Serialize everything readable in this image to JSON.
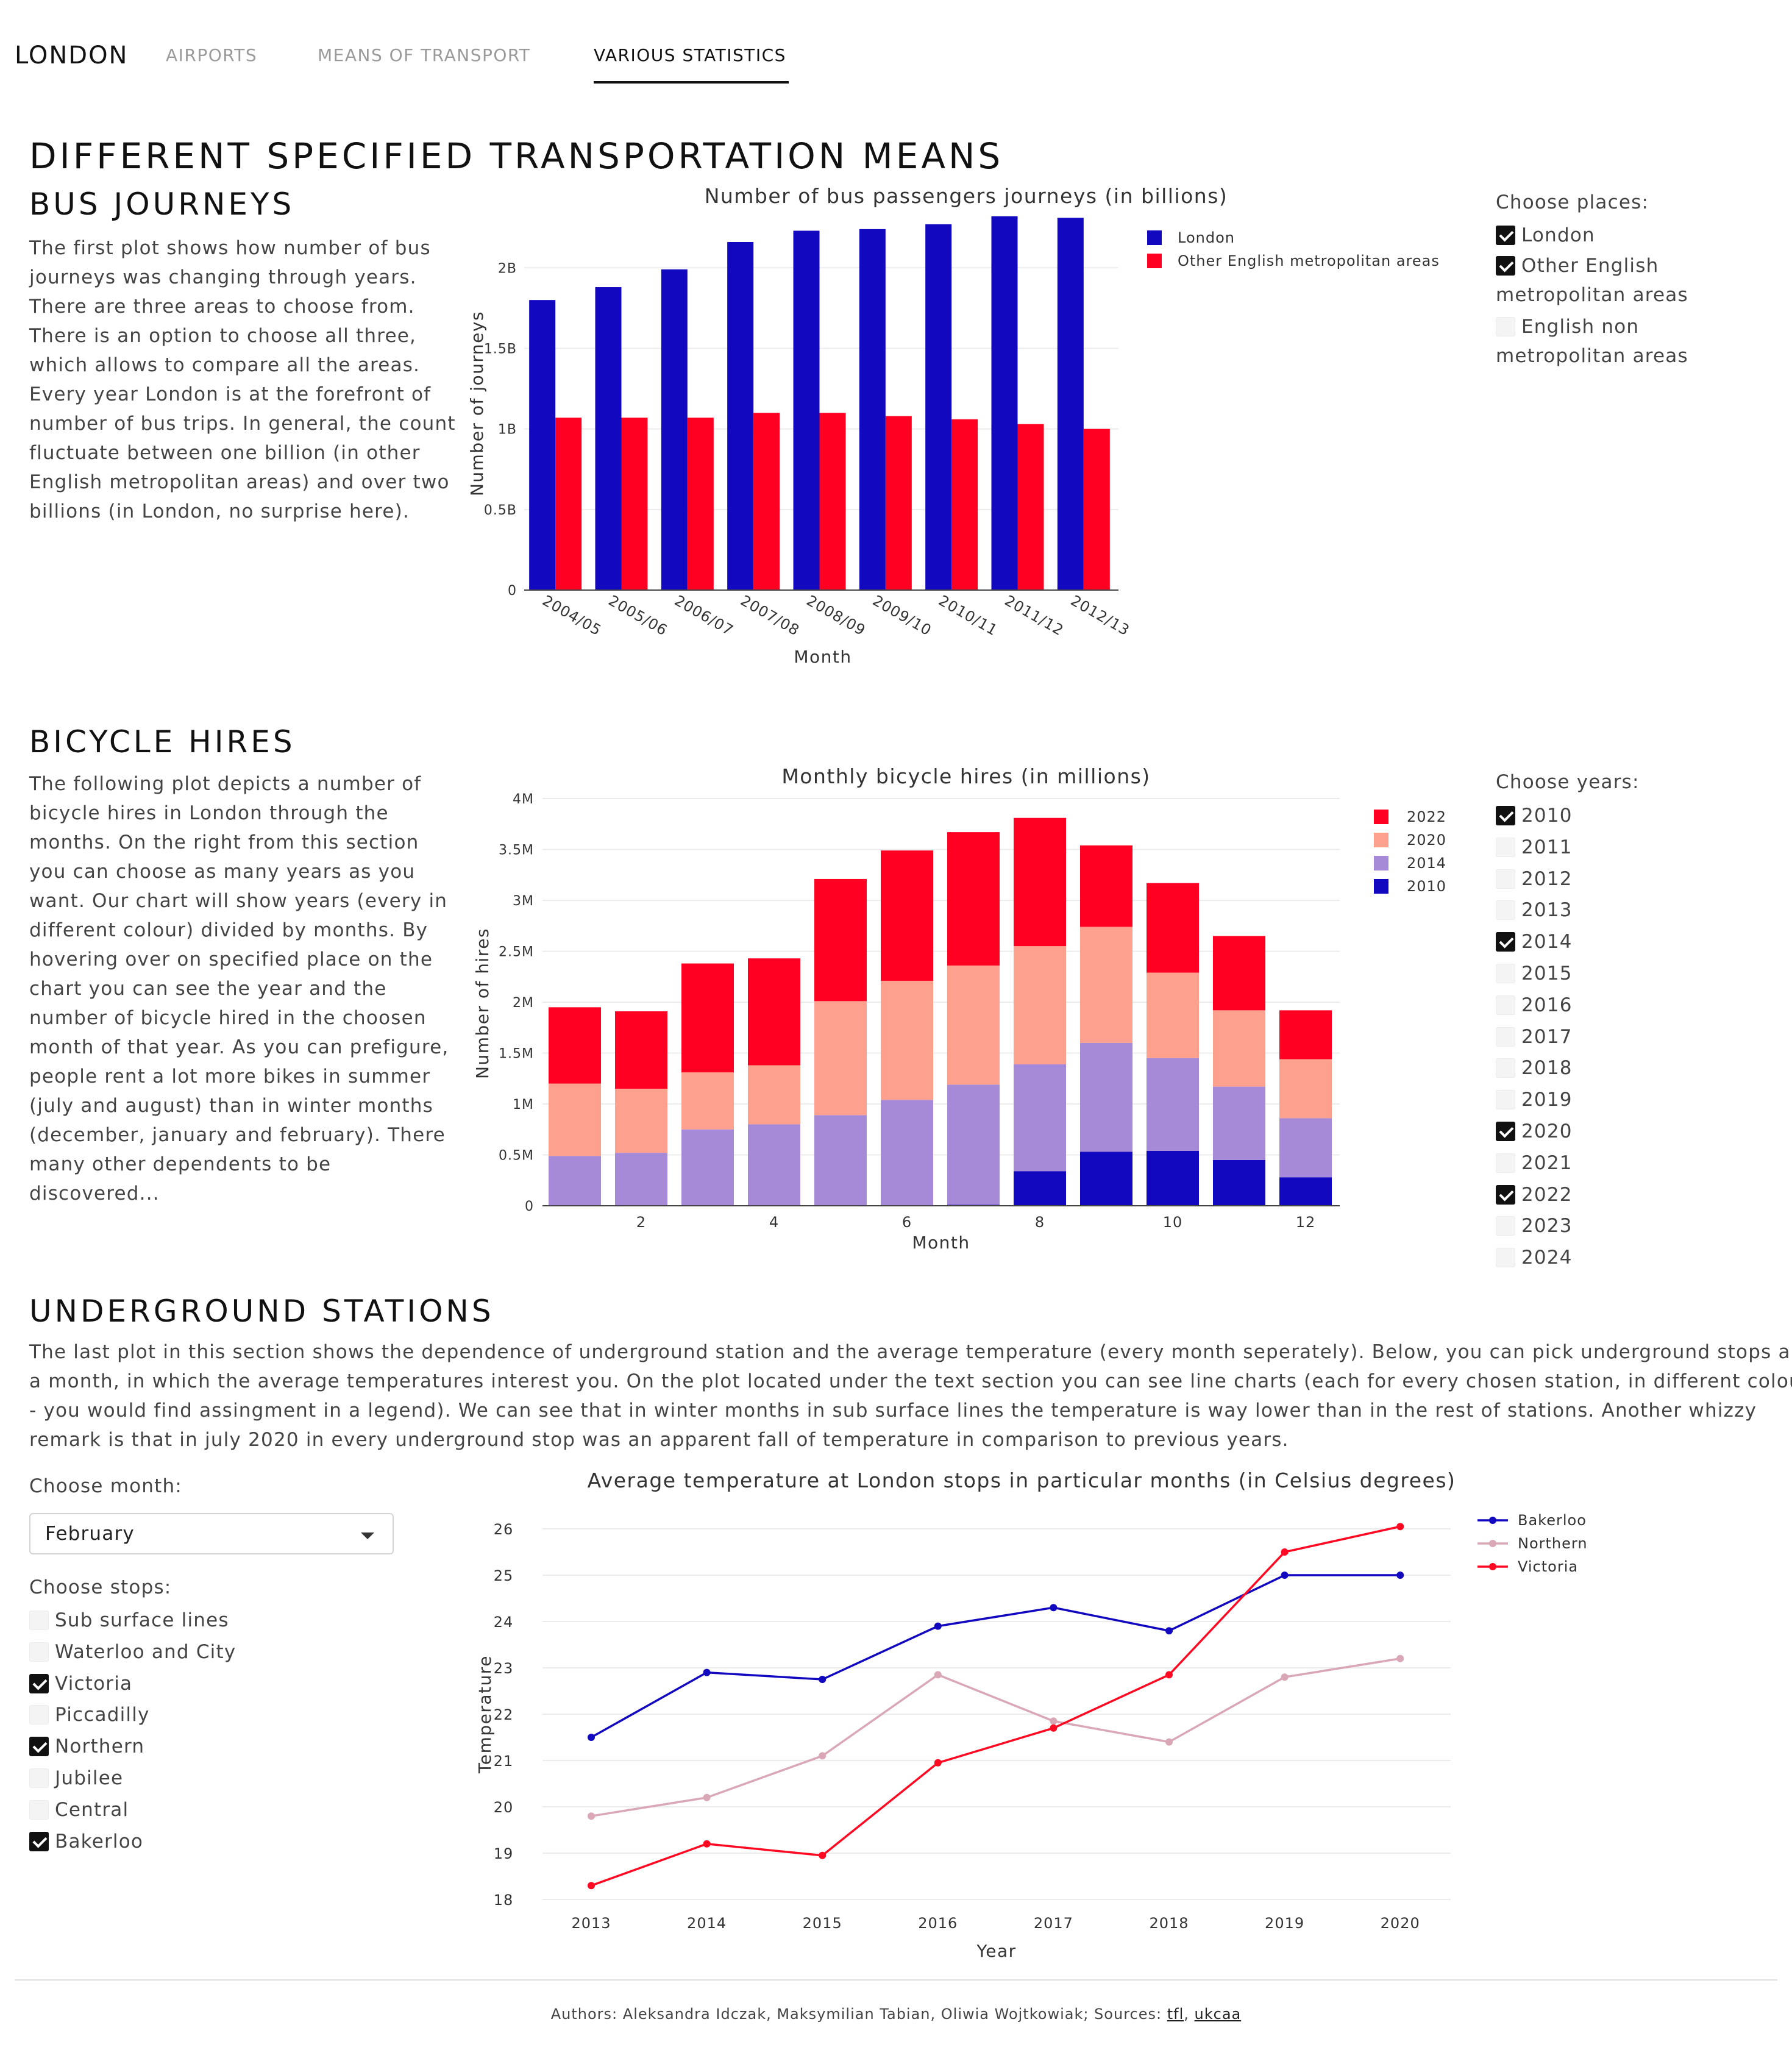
{
  "nav": {
    "brand": "LONDON",
    "tabs": [
      {
        "label": "AIRPORTS",
        "active": false
      },
      {
        "label": "MEANS OF TRANSPORT",
        "active": false
      },
      {
        "label": "VARIOUS STATISTICS",
        "active": true
      }
    ]
  },
  "page_title": "DIFFERENT SPECIFIED TRANSPORTATION MEANS",
  "bus": {
    "heading": "BUS JOURNEYS",
    "lines": [
      "The first plot shows how number of bus",
      "journeys was changing through years.",
      "There are three areas to choose from.",
      "There is an option to choose all three,",
      "which allows to compare all the areas.",
      "Every year London is at the forefront of",
      "number of bus trips. In general, the count",
      "fluctuate between one billion (in other",
      "English metropolitan areas) and over two",
      "billions (in London, no surprise here)."
    ],
    "control_title": "Choose places:",
    "places": [
      {
        "lines": [
          "London"
        ],
        "checked": true
      },
      {
        "lines": [
          "Other English",
          "metropolitan areas"
        ],
        "checked": true
      },
      {
        "lines": [
          "English non",
          "metropolitan areas"
        ],
        "checked": false
      }
    ]
  },
  "bicycle": {
    "heading": "BICYCLE HIRES",
    "lines": [
      "The following plot depicts a number of",
      "bicycle hires in London through the",
      "months. On the right from this section",
      "you can choose as many years as you",
      "want. Our chart will show years (every in",
      "different colour) divided by months. By",
      "hovering over on specified place on the",
      "chart you can see the year and the",
      "number of bicycle hired in the choosen",
      "month of that year. As you can prefigure,",
      "people rent a lot more bikes in summer",
      "(july and august) than in winter months",
      "(december, january and february). There",
      "many other dependents to be",
      "discovered..."
    ],
    "control_title": "Choose years:",
    "years": [
      {
        "label": "2010",
        "checked": true
      },
      {
        "label": "2011",
        "checked": false
      },
      {
        "label": "2012",
        "checked": false
      },
      {
        "label": "2013",
        "checked": false
      },
      {
        "label": "2014",
        "checked": true
      },
      {
        "label": "2015",
        "checked": false
      },
      {
        "label": "2016",
        "checked": false
      },
      {
        "label": "2017",
        "checked": false
      },
      {
        "label": "2018",
        "checked": false
      },
      {
        "label": "2019",
        "checked": false
      },
      {
        "label": "2020",
        "checked": true
      },
      {
        "label": "2021",
        "checked": false
      },
      {
        "label": "2022",
        "checked": true
      },
      {
        "label": "2023",
        "checked": false
      },
      {
        "label": "2024",
        "checked": false
      }
    ]
  },
  "underground": {
    "heading": "UNDERGROUND STATIONS",
    "lines": [
      "The last plot in this section shows the dependence of underground station and the average temperature (every month seperately). Below, you can pick underground stops and",
      "a month, in which the average temperatures interest you. On the plot located under the text section you can see line charts (each for every chosen station, in different colours",
      "- you would find assingment in a legend). We can see that in winter months in sub surface lines the temperature is way lower than in the rest of stations. Another whizzy",
      "remark is that in july 2020 in every underground stop was an apparent fall of temperature in comparison to previous years."
    ],
    "month_title": "Choose month:",
    "month_value": "February",
    "stops_title": "Choose stops:",
    "stops": [
      {
        "label": "Sub surface lines",
        "checked": false
      },
      {
        "label": "Waterloo and City",
        "checked": false
      },
      {
        "label": "Victoria",
        "checked": true
      },
      {
        "label": "Piccadilly",
        "checked": false
      },
      {
        "label": "Northern",
        "checked": true
      },
      {
        "label": "Jubilee",
        "checked": false
      },
      {
        "label": "Central",
        "checked": false
      },
      {
        "label": "Bakerloo",
        "checked": true
      }
    ]
  },
  "footer": {
    "prefix": "Authors: Aleksandra Idczak, Maksymilian Tabian, Oliwia Wojtkowiak; Sources: ",
    "link1": "tfl",
    "sep": ", ",
    "link2": "ukcaa"
  },
  "chart_data": [
    {
      "type": "bar",
      "barmode": "group",
      "title": "Number of bus passengers journeys (in billions)",
      "xlabel": "Month",
      "ylabel": "Number of journeys",
      "categories": [
        "2004/05",
        "2005/06",
        "2006/07",
        "2007/08",
        "2008/09",
        "2009/10",
        "2010/11",
        "2011/12",
        "2012/13"
      ],
      "ylim": [
        0,
        2.3
      ],
      "yticks": [
        0,
        0.5,
        1,
        1.5,
        2
      ],
      "ytick_labels": [
        "0",
        "0.5B",
        "1B",
        "1.5B",
        "2B"
      ],
      "grid": true,
      "legend": "top-right",
      "series": [
        {
          "name": "London",
          "color": "#1208c0",
          "values": [
            1.8,
            1.88,
            1.99,
            2.16,
            2.23,
            2.24,
            2.27,
            2.32,
            2.31
          ]
        },
        {
          "name": "Other English metropolitan areas",
          "color": "#ff0022",
          "values": [
            1.07,
            1.07,
            1.07,
            1.1,
            1.1,
            1.08,
            1.06,
            1.03,
            1.0
          ]
        }
      ]
    },
    {
      "type": "bar",
      "barmode": "stack",
      "title": "Monthly bicycle hires (in millions)",
      "xlabel": "Month",
      "ylabel": "Number of hires",
      "categories": [
        1,
        2,
        3,
        4,
        5,
        6,
        7,
        8,
        9,
        10,
        11,
        12
      ],
      "xtick_labels": [
        "2",
        "4",
        "6",
        "8",
        "10",
        "12"
      ],
      "ylim": [
        0,
        4
      ],
      "yticks": [
        0,
        0.5,
        1,
        1.5,
        2,
        2.5,
        3,
        3.5,
        4
      ],
      "ytick_labels": [
        "0",
        "0.5M",
        "1M",
        "1.5M",
        "2M",
        "2.5M",
        "3M",
        "3.5M",
        "4M"
      ],
      "grid": true,
      "legend": "top-right",
      "series": [
        {
          "name": "2010",
          "color": "#1208c0",
          "values": [
            0,
            0,
            0,
            0,
            0,
            0,
            0.01,
            0.34,
            0.53,
            0.54,
            0.45,
            0.28
          ]
        },
        {
          "name": "2014",
          "color": "#a68ad8",
          "values": [
            0.49,
            0.52,
            0.75,
            0.8,
            0.89,
            1.04,
            1.18,
            1.05,
            1.07,
            0.91,
            0.72,
            0.58
          ]
        },
        {
          "name": "2020",
          "color": "#fda08e",
          "values": [
            0.71,
            0.63,
            0.56,
            0.58,
            1.12,
            1.17,
            1.17,
            1.16,
            1.14,
            0.84,
            0.75,
            0.58
          ]
        },
        {
          "name": "2022",
          "color": "#ff0022",
          "values": [
            0.75,
            0.76,
            1.07,
            1.05,
            1.2,
            1.28,
            1.31,
            1.26,
            0.8,
            0.88,
            0.73,
            0.48
          ]
        }
      ]
    },
    {
      "type": "line",
      "title": "Average temperature at London stops in particular months (in Celsius degrees)",
      "xlabel": "Year",
      "ylabel": "Temperature",
      "x": [
        2013,
        2014,
        2015,
        2016,
        2017,
        2018,
        2019,
        2020
      ],
      "ylim": [
        18,
        26.5
      ],
      "yticks": [
        18,
        19,
        20,
        21,
        22,
        23,
        24,
        25,
        26
      ],
      "grid": true,
      "legend": "top-right",
      "series": [
        {
          "name": "Bakerloo",
          "color": "#1208c0",
          "values": [
            21.5,
            22.9,
            22.75,
            23.9,
            24.3,
            23.8,
            25.0,
            25.0
          ]
        },
        {
          "name": "Northern",
          "color": "#d9a7b6",
          "values": [
            19.8,
            20.2,
            21.1,
            22.85,
            21.85,
            21.4,
            22.8,
            23.2
          ]
        },
        {
          "name": "Victoria",
          "color": "#ff0a22",
          "values": [
            18.3,
            19.2,
            18.95,
            20.95,
            21.7,
            22.85,
            25.5,
            26.05
          ]
        }
      ]
    }
  ]
}
